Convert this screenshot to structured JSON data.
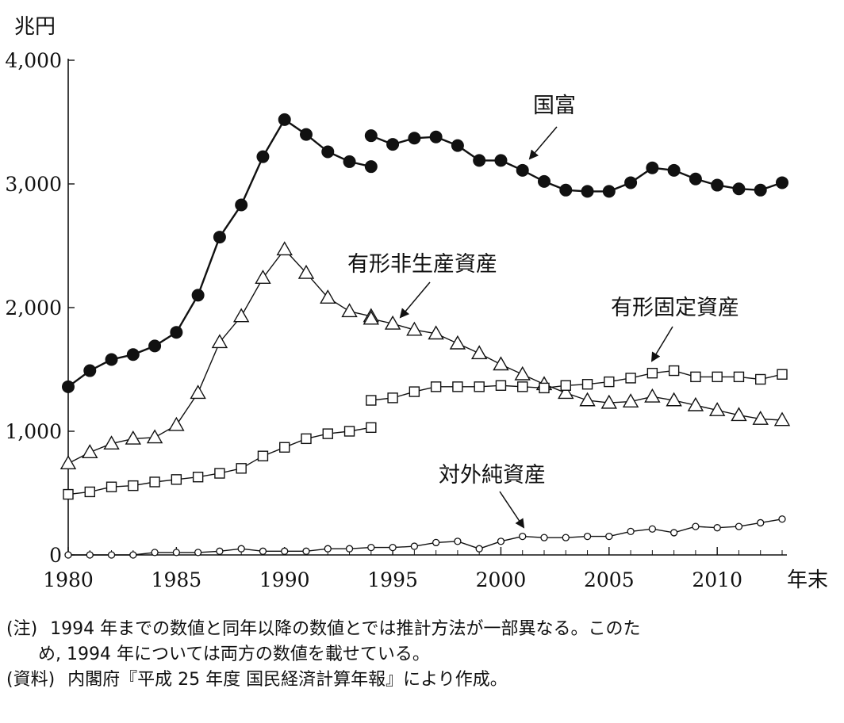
{
  "chart_data": {
    "type": "line",
    "ylabel": "兆円",
    "xlabel": "年末",
    "xlim": [
      1980,
      2013
    ],
    "ylim": [
      0,
      4000
    ],
    "x_ticks": [
      "1980",
      "1985",
      "1990",
      "1995",
      "2000",
      "2005",
      "2010"
    ],
    "y_ticks": [
      "0",
      "1,000",
      "2,000",
      "3,000",
      "4,000"
    ],
    "grid": false,
    "legend": "none (series labeled inline with arrows)",
    "series": [
      {
        "name": "国富",
        "marker": "filled-circle",
        "segments": [
          {
            "x": [
              1980,
              1981,
              1982,
              1983,
              1984,
              1985,
              1986,
              1987,
              1988,
              1989,
              1990,
              1991,
              1992,
              1993,
              1994
            ],
            "y": [
              1360,
              1490,
              1580,
              1620,
              1690,
              1800,
              2100,
              2570,
              2830,
              3220,
              3520,
              3400,
              3260,
              3180,
              3140
            ]
          },
          {
            "x": [
              1994,
              1995,
              1996,
              1997,
              1998,
              1999,
              2000,
              2001,
              2002,
              2003,
              2004,
              2005,
              2006,
              2007,
              2008,
              2009,
              2010,
              2011,
              2012,
              2013
            ],
            "y": [
              3390,
              3320,
              3370,
              3380,
              3310,
              3190,
              3190,
              3110,
              3020,
              2950,
              2940,
              2940,
              3010,
              3130,
              3110,
              3040,
              2990,
              2960,
              2950,
              3010
            ]
          }
        ]
      },
      {
        "name": "有形非生産資産",
        "marker": "open-triangle",
        "segments": [
          {
            "x": [
              1980,
              1981,
              1982,
              1983,
              1984,
              1985,
              1986,
              1987,
              1988,
              1989,
              1990,
              1991,
              1992,
              1993,
              1994
            ],
            "y": [
              740,
              830,
              900,
              940,
              950,
              1050,
              1310,
              1720,
              1930,
              2240,
              2470,
              2280,
              2080,
              1970,
              1930
            ]
          },
          {
            "x": [
              1994,
              1995,
              1996,
              1997,
              1998,
              1999,
              2000,
              2001,
              2002,
              2003,
              2004,
              2005,
              2006,
              2007,
              2008,
              2009,
              2010,
              2011,
              2012,
              2013
            ],
            "y": [
              1910,
              1870,
              1820,
              1790,
              1710,
              1630,
              1540,
              1460,
              1380,
              1310,
              1250,
              1230,
              1240,
              1280,
              1250,
              1210,
              1170,
              1130,
              1100,
              1090
            ]
          }
        ]
      },
      {
        "name": "有形固定資産",
        "marker": "open-square",
        "segments": [
          {
            "x": [
              1980,
              1981,
              1982,
              1983,
              1984,
              1985,
              1986,
              1987,
              1988,
              1989,
              1990,
              1991,
              1992,
              1993,
              1994
            ],
            "y": [
              490,
              510,
              550,
              560,
              590,
              610,
              630,
              660,
              700,
              800,
              870,
              940,
              980,
              1000,
              1030
            ]
          },
          {
            "x": [
              1994,
              1995,
              1996,
              1997,
              1998,
              1999,
              2000,
              2001,
              2002,
              2003,
              2004,
              2005,
              2006,
              2007,
              2008,
              2009,
              2010,
              2011,
              2012,
              2013
            ],
            "y": [
              1250,
              1270,
              1320,
              1360,
              1360,
              1360,
              1370,
              1360,
              1350,
              1370,
              1380,
              1400,
              1430,
              1470,
              1490,
              1440,
              1440,
              1440,
              1420,
              1460
            ]
          }
        ]
      },
      {
        "name": "対外純資産",
        "marker": "open-circle-small",
        "segments": [
          {
            "x": [
              1980,
              1981,
              1982,
              1983,
              1984,
              1985,
              1986,
              1987,
              1988,
              1989,
              1990,
              1991,
              1992,
              1993,
              1994,
              1995,
              1996,
              1997,
              1998,
              1999,
              2000,
              2001,
              2002,
              2003,
              2004,
              2005,
              2006,
              2007,
              2008,
              2009,
              2010,
              2011,
              2012,
              2013
            ],
            "y": [
              0,
              0,
              0,
              0,
              20,
              20,
              20,
              30,
              50,
              30,
              30,
              30,
              50,
              50,
              60,
              60,
              70,
              100,
              110,
              50,
              110,
              150,
              140,
              140,
              150,
              150,
              190,
              210,
              180,
              230,
              220,
              230,
              260,
              290
            ]
          }
        ]
      }
    ],
    "annotations": [
      {
        "text": "国富",
        "points_to": "国富"
      },
      {
        "text": "有形非生産資産",
        "points_to": "有形非生産資産"
      },
      {
        "text": "有形固定資産",
        "points_to": "有形固定資産"
      },
      {
        "text": "対外純資産",
        "points_to": "対外純資産"
      }
    ]
  },
  "notes": {
    "note_tag": "(注)",
    "note_line1": "1994 年までの数値と同年以降の数値とでは推計方法が一部異なる。このた",
    "note_line2": "め, 1994 年については両方の数値を載せている。",
    "source_tag": "(資料)",
    "source_text": "内閣府『平成 25 年度 国民経済計算年報』により作成。"
  }
}
